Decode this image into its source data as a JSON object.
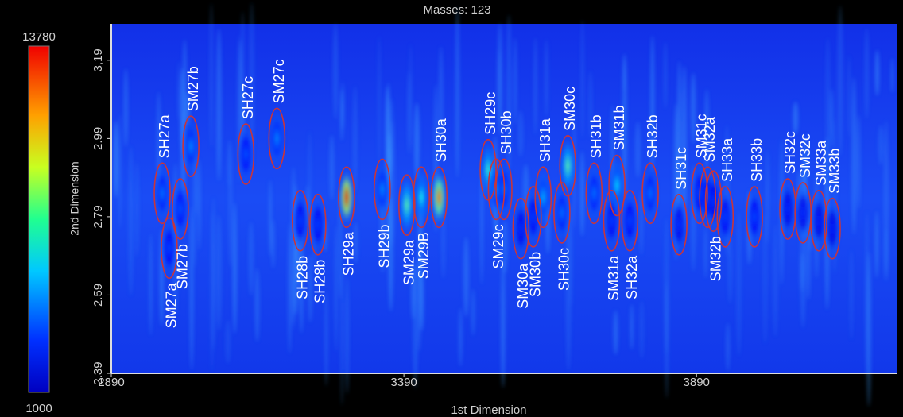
{
  "chart_data": {
    "type": "chromatogram",
    "title": "Masses: 123",
    "x_label": "1st Dimension",
    "y_label": "2nd Dimension",
    "xlim": [
      2890,
      4232
    ],
    "xticks": [
      2890,
      3390,
      3890
    ],
    "ylim": [
      2.39,
      3.283
    ],
    "yticks": [
      2.39,
      2.59,
      2.79,
      2.99,
      {
        "value": 3.19,
        "label": "3,19"
      }
    ],
    "colorbar": {
      "min": 1000,
      "max": 13780,
      "colormap": "jet"
    },
    "outline_color": "#c8343c",
    "peaks": [
      {
        "label": "SH27a",
        "x": 2977,
        "y": 2.85,
        "intensity": 4200,
        "label_position": "above"
      },
      {
        "label": "SM27a",
        "x": 2989,
        "y": 2.71,
        "intensity": 3600,
        "label_position": "below"
      },
      {
        "label": "SM27b",
        "x": 3026,
        "y": 2.97,
        "intensity": 4500,
        "label_position": "above"
      },
      {
        "label": "SM27b",
        "x": 3008,
        "y": 2.81,
        "intensity": 3800,
        "label_position": "below"
      },
      {
        "label": "SH27c",
        "x": 3120,
        "y": 2.95,
        "intensity": 3800,
        "label_position": "above"
      },
      {
        "label": "SM27c",
        "x": 3173,
        "y": 2.99,
        "intensity": 4500,
        "label_position": "above"
      },
      {
        "label": "SH28b",
        "x": 3213,
        "y": 2.78,
        "intensity": 3500,
        "label_position": "below"
      },
      {
        "label": "SH28b",
        "x": 3243,
        "y": 2.77,
        "intensity": 3500,
        "label_position": "below"
      },
      {
        "label": "SH29a",
        "x": 3292,
        "y": 2.84,
        "intensity": 12500,
        "label_position": "below"
      },
      {
        "label": "SH29b",
        "x": 3353,
        "y": 2.86,
        "intensity": 4500,
        "label_position": "below"
      },
      {
        "label": "SM29a",
        "x": 3395,
        "y": 2.82,
        "intensity": 7000,
        "label_position": "below"
      },
      {
        "label": "SM29B",
        "x": 3420,
        "y": 2.84,
        "intensity": 6000,
        "label_position": "below"
      },
      {
        "label": "SH30a",
        "x": 3450,
        "y": 2.84,
        "intensity": 11000,
        "label_position": "above"
      },
      {
        "label": "SH29c",
        "x": 3534,
        "y": 2.91,
        "intensity": 6500,
        "label_position": "above"
      },
      {
        "label": "SM29c",
        "x": 3548,
        "y": 2.86,
        "intensity": 4500,
        "label_position": "below"
      },
      {
        "label": "SH30b",
        "x": 3561,
        "y": 2.86,
        "intensity": 4200,
        "label_position": "above"
      },
      {
        "label": "SM30a",
        "x": 3590,
        "y": 2.76,
        "intensity": 3300,
        "label_position": "below"
      },
      {
        "label": "SM30b",
        "x": 3611,
        "y": 2.79,
        "intensity": 3500,
        "label_position": "below"
      },
      {
        "label": "SH31a",
        "x": 3628,
        "y": 2.84,
        "intensity": 5000,
        "label_position": "above"
      },
      {
        "label": "SH30c",
        "x": 3660,
        "y": 2.8,
        "intensity": 4200,
        "label_position": "below"
      },
      {
        "label": "SM30c",
        "x": 3670,
        "y": 2.92,
        "intensity": 7000,
        "label_position": "above"
      },
      {
        "label": "SH31b",
        "x": 3715,
        "y": 2.85,
        "intensity": 4200,
        "label_position": "above"
      },
      {
        "label": "SM31a",
        "x": 3745,
        "y": 2.78,
        "intensity": 3500,
        "label_position": "below"
      },
      {
        "label": "SM31b",
        "x": 3754,
        "y": 2.87,
        "intensity": 5500,
        "label_position": "above"
      },
      {
        "label": "SH32a",
        "x": 3776,
        "y": 2.78,
        "intensity": 3600,
        "label_position": "below"
      },
      {
        "label": "SH32b",
        "x": 3811,
        "y": 2.85,
        "intensity": 4200,
        "label_position": "above"
      },
      {
        "label": "SH31c",
        "x": 3860,
        "y": 2.77,
        "intensity": 3300,
        "label_position": "above"
      },
      {
        "label": "SM31c",
        "x": 3895,
        "y": 2.85,
        "intensity": 3600,
        "label_position": "above"
      },
      {
        "label": "SM32a",
        "x": 3909,
        "y": 2.84,
        "intensity": 3600,
        "label_position": "above"
      },
      {
        "label": "SM32b",
        "x": 3919,
        "y": 2.83,
        "intensity": 3400,
        "label_position": "below"
      },
      {
        "label": "SH33a",
        "x": 3939,
        "y": 2.79,
        "intensity": 3500,
        "label_position": "above"
      },
      {
        "label": "SH33b",
        "x": 3989,
        "y": 2.79,
        "intensity": 3600,
        "label_position": "above"
      },
      {
        "label": "SH32c",
        "x": 4046,
        "y": 2.81,
        "intensity": 3200,
        "label_position": "above"
      },
      {
        "label": "SM32c",
        "x": 4072,
        "y": 2.8,
        "intensity": 3200,
        "label_position": "above"
      },
      {
        "label": "SM33a",
        "x": 4099,
        "y": 2.78,
        "intensity": 3100,
        "label_position": "above"
      },
      {
        "label": "SM33b",
        "x": 4122,
        "y": 2.76,
        "intensity": 3100,
        "label_position": "above"
      }
    ]
  }
}
